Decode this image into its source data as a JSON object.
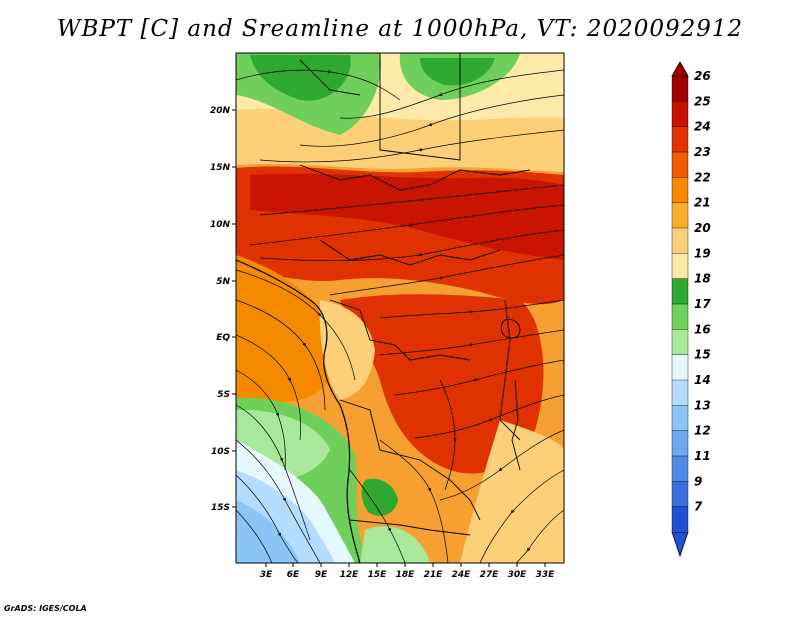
{
  "title": "WBPT [C] and Sreamline at 1000hPa, VT: 2020092912",
  "credit": "GrADS: IGES/COLA",
  "map": {
    "lon_labels": [
      "3E",
      "6E",
      "9E",
      "12E",
      "15E",
      "18E",
      "21E",
      "24E",
      "27E",
      "30E",
      "33E"
    ],
    "lat_labels": [
      "20N",
      "15N",
      "10N",
      "5N",
      "EQ",
      "5S",
      "10S",
      "15S"
    ]
  },
  "colorbar": {
    "labels": [
      "26",
      "25",
      "24",
      "23",
      "22",
      "21",
      "20",
      "19",
      "18",
      "17",
      "16",
      "15",
      "14",
      "13",
      "12",
      "11",
      "9",
      "7"
    ],
    "colors": [
      "#a00000",
      "#c81400",
      "#e03200",
      "#f05a00",
      "#f58a00",
      "#f9ae2c",
      "#fbd078",
      "#fde9a8",
      "#2fa82f",
      "#6ed05a",
      "#a8e89a",
      "#e6f8ff",
      "#b4dcff",
      "#8cc4f5",
      "#6ea8ee",
      "#508ce6",
      "#3c6ede",
      "#2050d2"
    ]
  },
  "colors": {
    "strong": "#c82a00",
    "warm": "#f07010",
    "mild": "#fbd078",
    "green": "#6ed05a",
    "cool": "#8cc4f5"
  }
}
